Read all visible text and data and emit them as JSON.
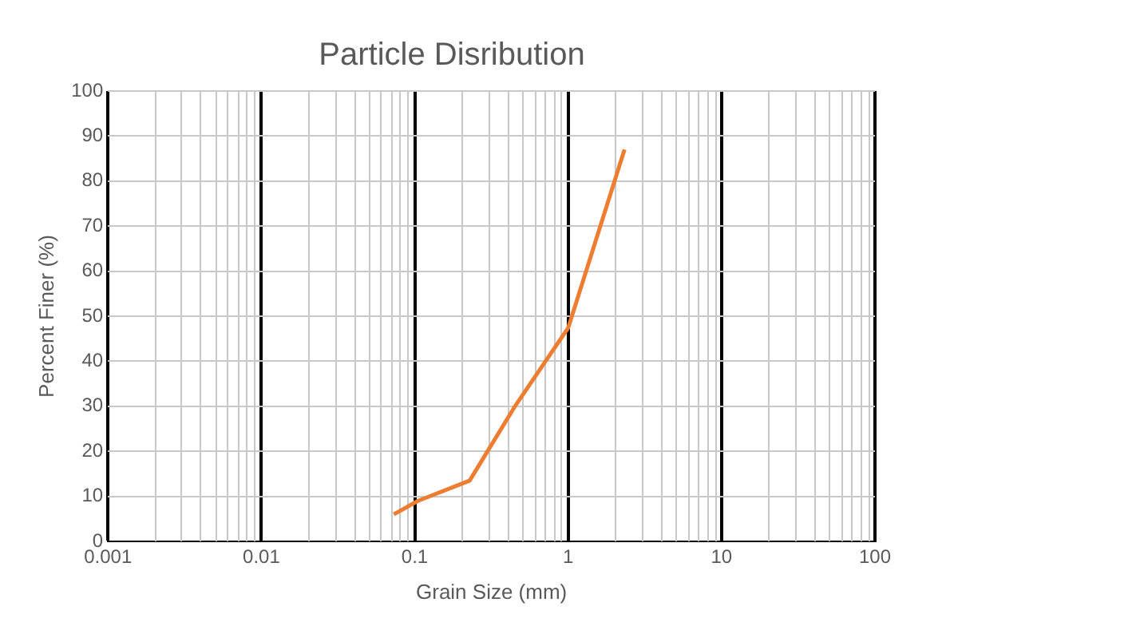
{
  "chart_data": {
    "type": "line",
    "title": "Particle Disribution",
    "xlabel": "Grain Size (mm)",
    "ylabel": "Percent Finer (%)",
    "log": "x",
    "grid": true,
    "marker": "none",
    "line_style": "solid",
    "x": [
      0.073,
      0.105,
      0.228,
      0.45,
      1,
      2.33
    ],
    "series": [
      {
        "color": "#ed7d31",
        "values": [
          6,
          9,
          13.5,
          30,
          47.4,
          87
        ]
      }
    ],
    "xlim": [
      0.001,
      100
    ],
    "xticks": [
      0.001,
      0.01,
      0.1,
      1,
      10,
      100
    ],
    "ylim": [
      0,
      100
    ],
    "yticks": [
      0,
      10,
      20,
      30,
      40,
      50,
      60,
      70,
      80,
      90,
      100
    ]
  }
}
